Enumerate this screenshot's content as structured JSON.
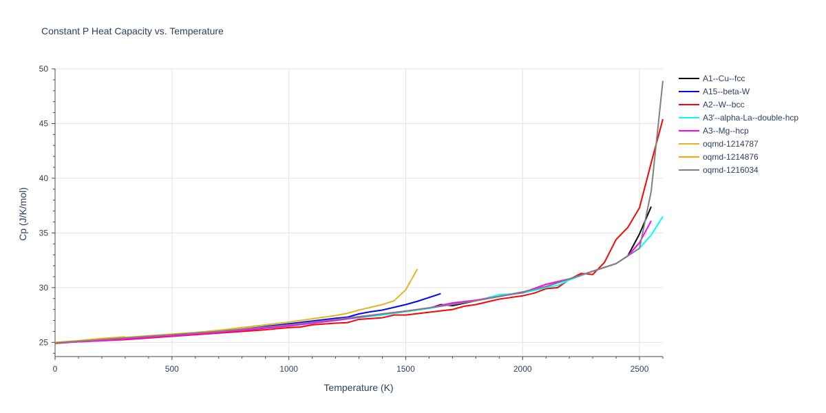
{
  "chart_data": {
    "type": "line",
    "title": "Constant P Heat Capacity vs. Temperature",
    "xlabel": "Temperature (K)",
    "ylabel": "Cp (J/K/mol)",
    "xlim": [
      0,
      2600
    ],
    "ylim": [
      23.7,
      50
    ],
    "xticks": [
      0,
      500,
      1000,
      1500,
      2000,
      2500
    ],
    "yticks": [
      25,
      30,
      35,
      40,
      45,
      50
    ],
    "grid": true,
    "legend_position": "right",
    "series": [
      {
        "name": "A1--Cu--fcc",
        "color": "#000000",
        "x": [
          0,
          100,
          200,
          300,
          400,
          500,
          600,
          700,
          800,
          900,
          1000,
          1100,
          1200,
          1300,
          1400,
          1500,
          1600,
          1650,
          1700,
          1800,
          1900,
          2000,
          2100,
          2200,
          2300,
          2400,
          2450,
          2500,
          2550
        ],
        "y": [
          24.95,
          25.1,
          25.2,
          25.35,
          25.5,
          25.65,
          25.8,
          25.95,
          26.15,
          26.35,
          26.55,
          26.8,
          27.05,
          27.3,
          27.55,
          27.85,
          28.1,
          28.45,
          28.35,
          28.8,
          29.2,
          29.6,
          30.1,
          30.8,
          31.5,
          32.2,
          32.9,
          34.9,
          37.4
        ]
      },
      {
        "name": "A15--beta-W",
        "color": "#0000ff",
        "x": [
          0,
          100,
          200,
          300,
          400,
          500,
          600,
          700,
          800,
          900,
          1000,
          1100,
          1200,
          1250,
          1300,
          1350,
          1400,
          1450,
          1500,
          1550,
          1600,
          1650
        ],
        "y": [
          24.95,
          25.1,
          25.25,
          25.4,
          25.55,
          25.7,
          25.85,
          26.0,
          26.2,
          26.45,
          26.7,
          26.95,
          27.2,
          27.3,
          27.6,
          27.8,
          27.95,
          28.2,
          28.45,
          28.75,
          29.1,
          29.45
        ]
      },
      {
        "name": "A2--W--bcc",
        "color": "#ff0000",
        "x": [
          0,
          100,
          200,
          300,
          400,
          500,
          600,
          700,
          800,
          900,
          1000,
          1050,
          1100,
          1200,
          1250,
          1300,
          1400,
          1450,
          1500,
          1600,
          1700,
          1750,
          1800,
          1850,
          1900,
          2000,
          2050,
          2100,
          2150,
          2200,
          2250,
          2300,
          2350,
          2400,
          2450,
          2500,
          2550,
          2600
        ],
        "y": [
          24.9,
          25.05,
          25.15,
          25.25,
          25.4,
          25.55,
          25.7,
          25.85,
          26.0,
          26.15,
          26.35,
          26.4,
          26.6,
          26.75,
          26.8,
          27.1,
          27.25,
          27.5,
          27.5,
          27.75,
          28.0,
          28.3,
          28.45,
          28.7,
          28.95,
          29.25,
          29.5,
          29.9,
          30.0,
          30.75,
          31.3,
          31.2,
          32.3,
          34.4,
          35.5,
          37.3,
          41.4,
          45.4
        ]
      },
      {
        "name": "A3'--alpha-La--double-hcp",
        "color": "#00ffff",
        "x": [
          0,
          100,
          200,
          300,
          400,
          500,
          600,
          700,
          800,
          900,
          1000,
          1100,
          1200,
          1300,
          1400,
          1500,
          1600,
          1700,
          1800,
          1900,
          2000,
          2100,
          2150,
          2200,
          2300,
          2400,
          2450,
          2500,
          2550,
          2600
        ],
        "y": [
          24.95,
          25.1,
          25.2,
          25.35,
          25.5,
          25.65,
          25.8,
          25.95,
          26.1,
          26.3,
          26.5,
          26.75,
          27.0,
          27.25,
          27.5,
          27.8,
          28.1,
          28.5,
          28.8,
          29.35,
          29.5,
          30.0,
          30.2,
          30.7,
          31.5,
          32.2,
          32.9,
          33.6,
          34.8,
          36.5
        ]
      },
      {
        "name": "A3--Mg--hcp",
        "color": "#ff00ff",
        "x": [
          0,
          100,
          200,
          300,
          400,
          500,
          600,
          700,
          800,
          900,
          1000,
          1100,
          1200,
          1300,
          1400,
          1500,
          1600,
          1700,
          1800,
          1900,
          2000,
          2100,
          2150,
          2200,
          2300,
          2400,
          2450,
          2500,
          2550
        ],
        "y": [
          24.95,
          25.05,
          25.15,
          25.3,
          25.45,
          25.6,
          25.75,
          25.9,
          26.1,
          26.3,
          26.5,
          26.75,
          27.0,
          27.3,
          27.6,
          27.85,
          28.15,
          28.6,
          28.85,
          29.2,
          29.55,
          30.3,
          30.55,
          30.8,
          31.5,
          32.2,
          32.9,
          34.1,
          36.1
        ]
      },
      {
        "name": "oqmd-1214787",
        "color": "#e6b419",
        "x": [
          0,
          100,
          200,
          300,
          400,
          500,
          600,
          700,
          800,
          900,
          1000,
          1100,
          1200,
          1250,
          1300,
          1400,
          1450,
          1500,
          1550
        ],
        "y": [
          25.0,
          25.15,
          25.3,
          25.45,
          25.6,
          25.75,
          25.9,
          26.1,
          26.35,
          26.6,
          26.85,
          27.15,
          27.45,
          27.65,
          27.95,
          28.45,
          28.8,
          29.8,
          31.7
        ]
      },
      {
        "name": "oqmd-1214876",
        "color": "#ffa500",
        "x": [
          0,
          100,
          200,
          300
        ],
        "y": [
          24.95,
          25.15,
          25.35,
          25.5
        ]
      },
      {
        "name": "oqmd-1216034",
        "color": "#808080",
        "x": [
          0,
          100,
          200,
          300,
          400,
          500,
          600,
          700,
          800,
          900,
          1000,
          1100,
          1200,
          1300,
          1400,
          1500,
          1600,
          1700,
          1800,
          1900,
          2000,
          2100,
          2200,
          2300,
          2400,
          2450,
          2500,
          2550,
          2600
        ],
        "y": [
          24.95,
          25.1,
          25.25,
          25.4,
          25.55,
          25.7,
          25.85,
          26.0,
          26.2,
          26.4,
          26.6,
          26.85,
          27.1,
          27.35,
          27.6,
          27.85,
          28.15,
          28.45,
          28.8,
          29.2,
          29.6,
          30.1,
          30.8,
          31.5,
          32.2,
          32.9,
          33.6,
          38.8,
          48.9
        ]
      }
    ]
  }
}
